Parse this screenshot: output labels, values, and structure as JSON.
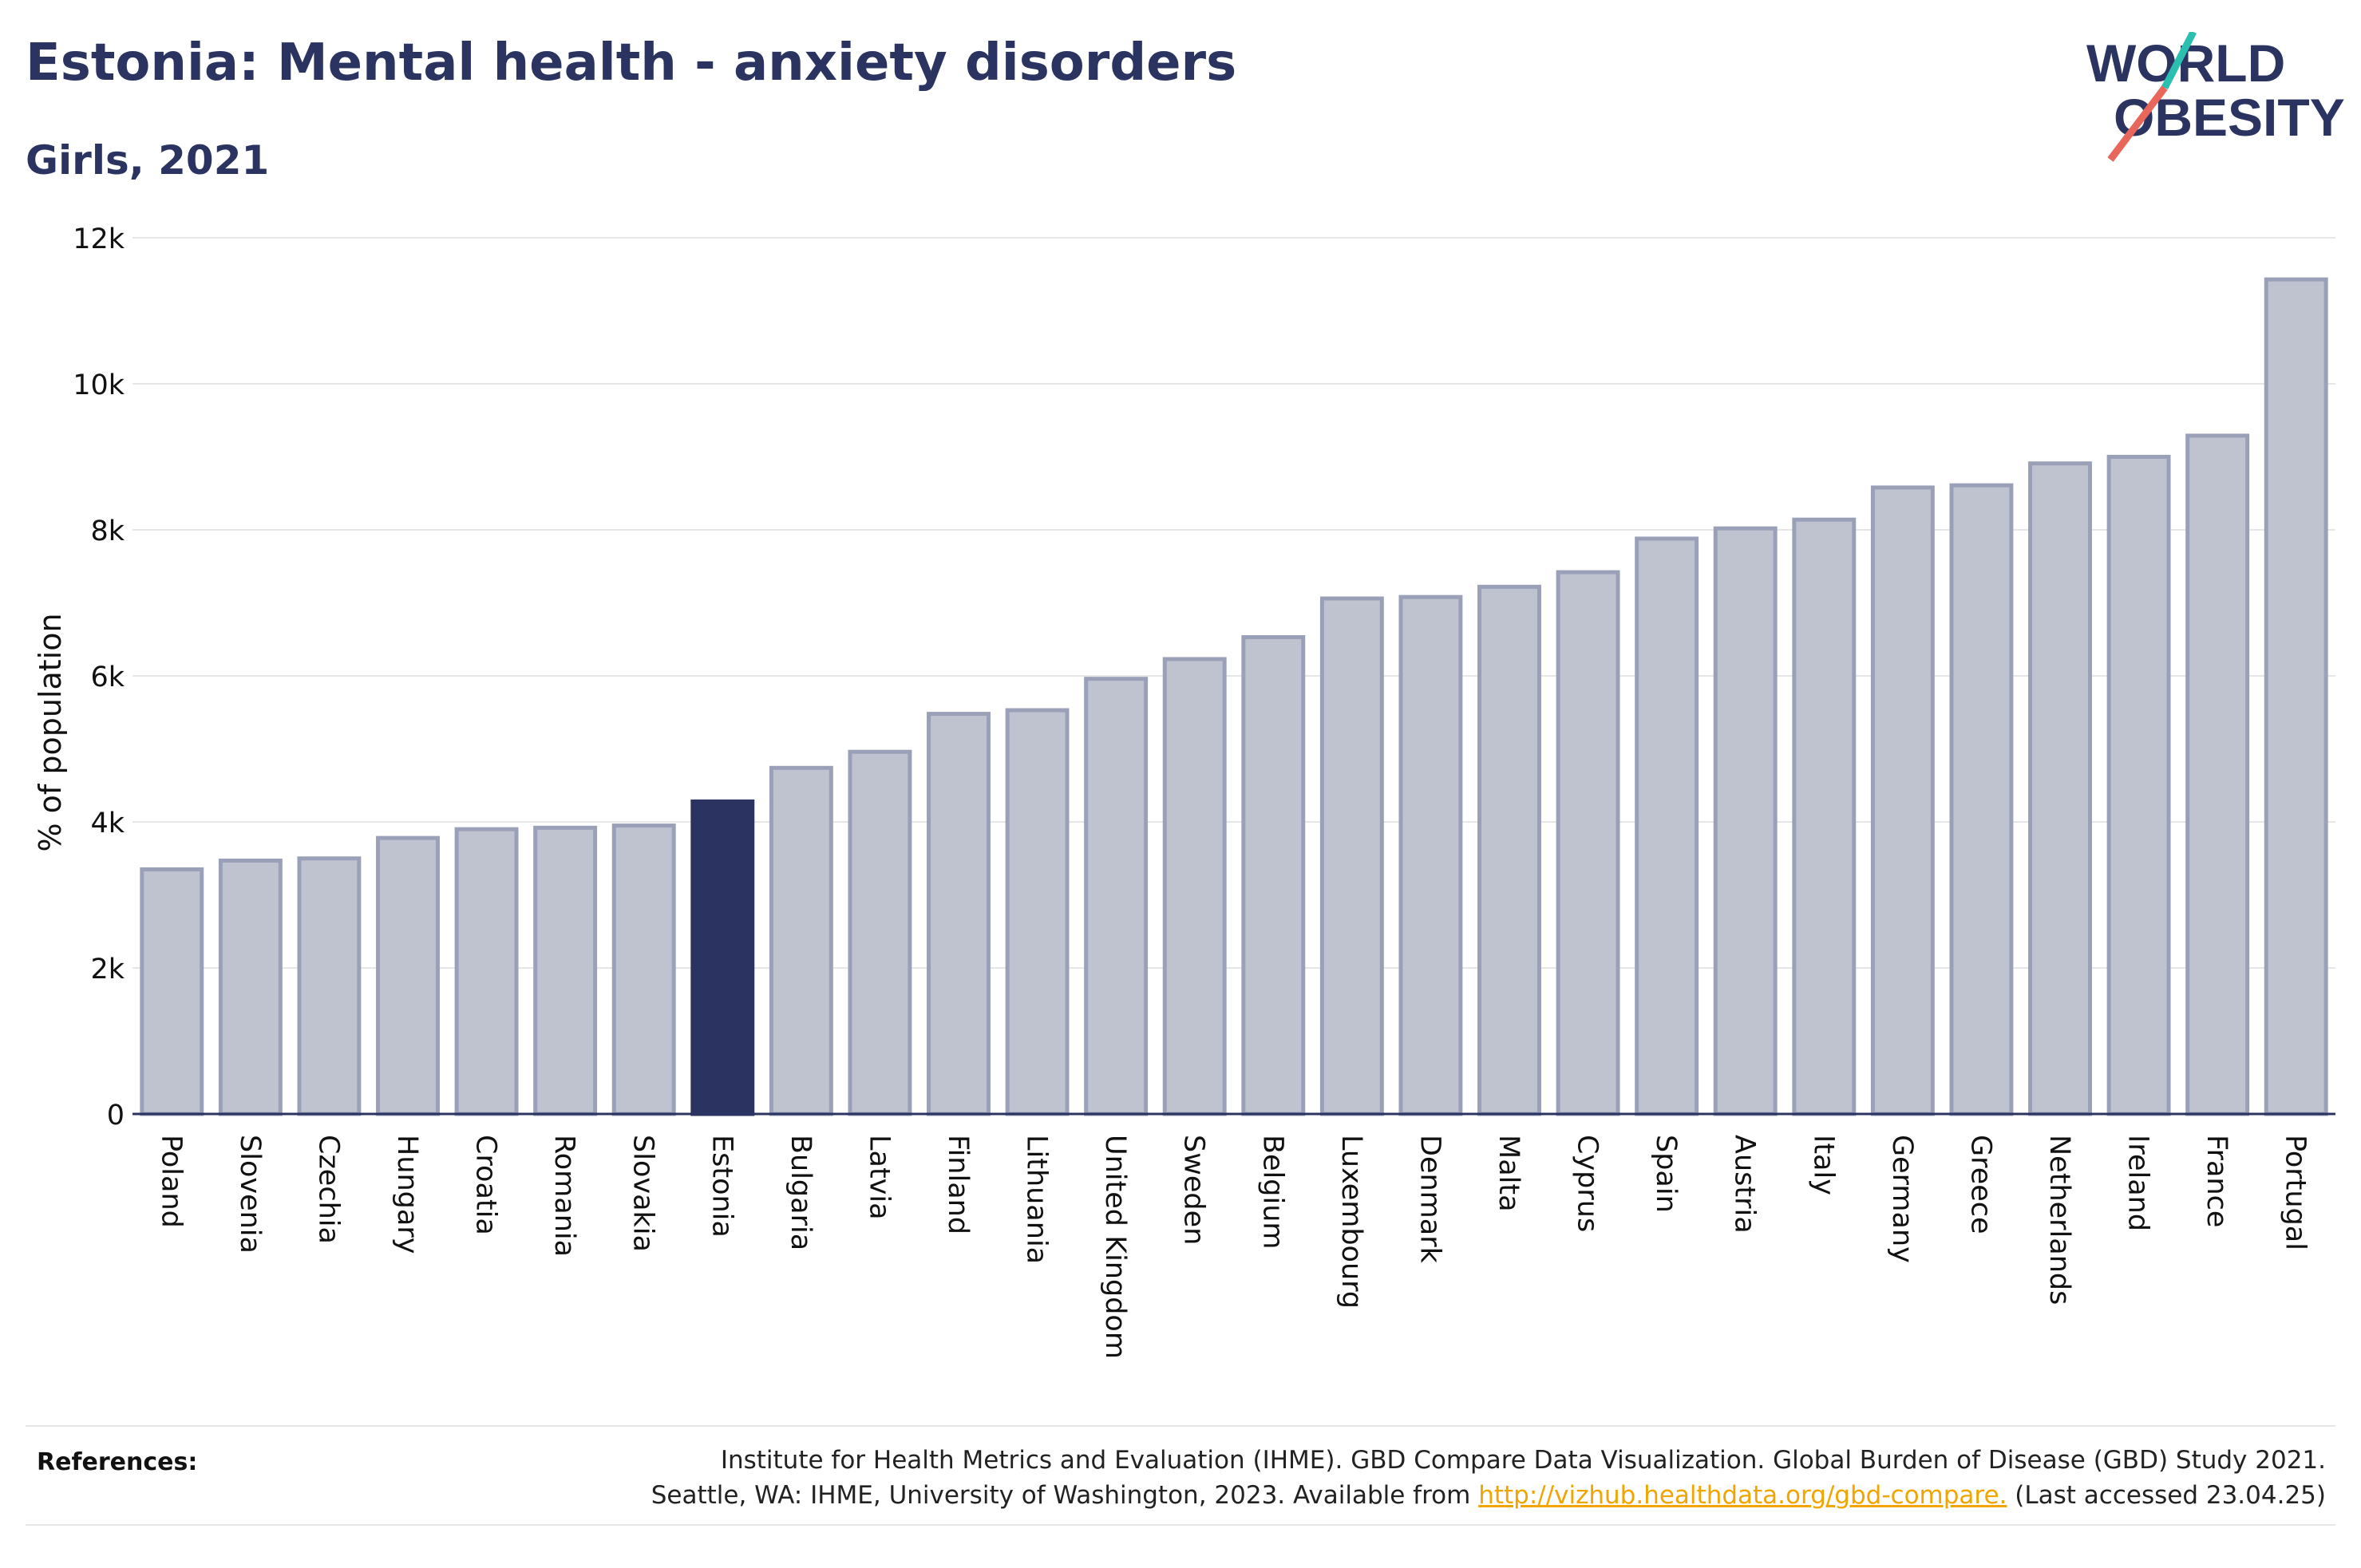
{
  "header": {
    "title": "Estonia: Mental health - anxiety disorders",
    "subtitle": "Girls, 2021"
  },
  "logo": {
    "line1": "WORLD",
    "line2": "OBESITY"
  },
  "colors": {
    "title": "#2b3460",
    "highlight_bar": "#2b3460",
    "bar_fill": "#bfc3d0",
    "bar_stroke": "#9aa0b8",
    "gridline": "#e6e6e6",
    "logo_teal": "#2bbfb0",
    "logo_red": "#e8665a",
    "link": "#f0a500"
  },
  "chart_data": {
    "type": "bar",
    "title": "Estonia: Mental health - anxiety disorders",
    "subtitle": "Girls, 2021",
    "xlabel": "",
    "ylabel": "% of population",
    "ylim": [
      0,
      12000
    ],
    "yticks": [
      0,
      2000,
      4000,
      6000,
      8000,
      10000,
      12000
    ],
    "ytick_labels": [
      "0",
      "2k",
      "4k",
      "6k",
      "8k",
      "10k",
      "12k"
    ],
    "highlight": "Estonia",
    "grid": true,
    "legend": "none",
    "categories": [
      "Poland",
      "Slovenia",
      "Czechia",
      "Hungary",
      "Croatia",
      "Romania",
      "Slovakia",
      "Estonia",
      "Bulgaria",
      "Latvia",
      "Finland",
      "Lithuania",
      "United Kingdom",
      "Sweden",
      "Belgium",
      "Luxembourg",
      "Denmark",
      "Malta",
      "Cyprus",
      "Spain",
      "Austria",
      "Italy",
      "Germany",
      "Greece",
      "Netherlands",
      "Ireland",
      "France",
      "Portugal"
    ],
    "values": [
      3350,
      3470,
      3500,
      3780,
      3900,
      3920,
      3950,
      4280,
      4740,
      4960,
      5480,
      5530,
      5960,
      6230,
      6530,
      7060,
      7080,
      7220,
      7420,
      7880,
      8020,
      8140,
      8580,
      8610,
      8910,
      9000,
      9290,
      11430
    ]
  },
  "references": {
    "label": "References:",
    "line1": "Institute for Health Metrics and Evaluation (IHME). GBD Compare Data Visualization. Global Burden of Disease (GBD) Study 2021.",
    "line2_prefix": "Seattle, WA: IHME, University of Washington, 2023. Available from",
    "link_text": "http://vizhub.healthdata.org/gbd-compare.",
    "line2_suffix": "(Last accessed 23.04.25)"
  }
}
